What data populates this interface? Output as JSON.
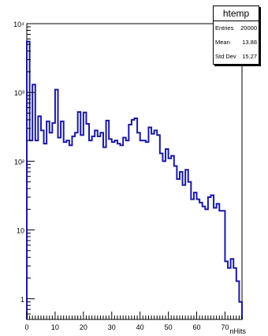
{
  "chart_data": {
    "type": "histogram",
    "title": "htemp",
    "xlabel": "nHits",
    "ylabel": "",
    "xlim": [
      0,
      76
    ],
    "ylim": [
      0.5,
      10000
    ],
    "yscale": "log",
    "bin_width": 1,
    "grid": false,
    "line_color": "#1a1aa0",
    "x_tick_labels": [
      "0",
      "10",
      "20",
      "30",
      "40",
      "50",
      "60",
      "70"
    ],
    "y_tick_labels": [
      {
        "value": 1,
        "label": "1"
      },
      {
        "value": 10,
        "label": "10"
      },
      {
        "value": 100,
        "label": "10²"
      },
      {
        "value": 1000,
        "label": "10³"
      },
      {
        "value": 10000,
        "label": "10⁴"
      }
    ],
    "x": [
      0,
      1,
      2,
      3,
      4,
      5,
      6,
      7,
      8,
      9,
      10,
      11,
      12,
      13,
      14,
      15,
      16,
      17,
      18,
      19,
      20,
      21,
      22,
      23,
      24,
      25,
      26,
      27,
      28,
      29,
      30,
      31,
      32,
      33,
      34,
      35,
      36,
      37,
      38,
      39,
      40,
      41,
      42,
      43,
      44,
      45,
      46,
      47,
      48,
      49,
      50,
      51,
      52,
      53,
      54,
      55,
      56,
      57,
      58,
      59,
      60,
      61,
      62,
      63,
      64,
      65,
      66,
      67,
      68,
      69,
      70,
      71,
      72,
      73,
      74,
      75
    ],
    "values": [
      5500,
      200,
      1300,
      200,
      450,
      280,
      180,
      380,
      260,
      360,
      1100,
      220,
      380,
      190,
      200,
      170,
      230,
      260,
      520,
      240,
      510,
      350,
      200,
      230,
      280,
      230,
      260,
      160,
      390,
      210,
      190,
      200,
      180,
      170,
      220,
      200,
      340,
      400,
      420,
      260,
      200,
      200,
      190,
      310,
      250,
      280,
      240,
      130,
      100,
      150,
      110,
      120,
      85,
      55,
      70,
      45,
      75,
      50,
      28,
      35,
      28,
      25,
      22,
      20,
      30,
      32,
      21,
      24,
      19,
      19,
      3.5,
      2.8,
      3.8,
      2.8,
      1.8,
      0.9
    ]
  },
  "stats_box": {
    "title": "htemp",
    "rows": [
      {
        "label": "Entries",
        "value": "20000"
      },
      {
        "label": "Mean",
        "value": "13.88"
      },
      {
        "label": "Std Dev",
        "value": "15.27"
      }
    ]
  }
}
